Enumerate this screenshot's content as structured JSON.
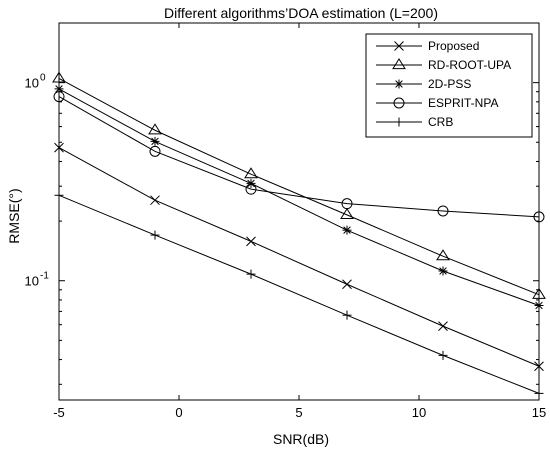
{
  "chart_data": {
    "type": "line",
    "title": "Different algorithms’DOA estimation (L=200)",
    "xlabel": "SNR(dB)",
    "ylabel": "RMSE(°)",
    "x": [
      -5,
      -1,
      3,
      7,
      11,
      15
    ],
    "xlim": [
      -5,
      15
    ],
    "ylim": [
      0.025,
      2.0
    ],
    "yscale": "log",
    "xticks": [
      -5,
      0,
      5,
      10,
      15
    ],
    "xtick_labels": [
      "-5",
      "0",
      "5",
      "10",
      "15"
    ],
    "yticks": [
      {
        "value": 1,
        "base": "10",
        "exp": "0"
      },
      {
        "value": 0.1,
        "base": "10",
        "exp": "-1"
      }
    ],
    "grid": false,
    "legend_position": "top-right",
    "series": [
      {
        "name": "Proposed",
        "marker": "x",
        "values": [
          0.47,
          0.255,
          0.158,
          0.096,
          0.059,
          0.037
        ]
      },
      {
        "name": "RD-ROOT-UPA",
        "marker": "triangle",
        "values": [
          1.05,
          0.575,
          0.345,
          0.215,
          0.133,
          0.085
        ]
      },
      {
        "name": "2D-PSS",
        "marker": "star",
        "values": [
          0.93,
          0.505,
          0.31,
          0.18,
          0.112,
          0.075
        ]
      },
      {
        "name": "ESPRIT-NPA",
        "marker": "circle",
        "values": [
          0.85,
          0.45,
          0.29,
          0.245,
          0.225,
          0.21
        ]
      },
      {
        "name": "CRB",
        "marker": "plus",
        "values": [
          0.27,
          0.17,
          0.108,
          0.067,
          0.042,
          0.027
        ]
      }
    ]
  }
}
